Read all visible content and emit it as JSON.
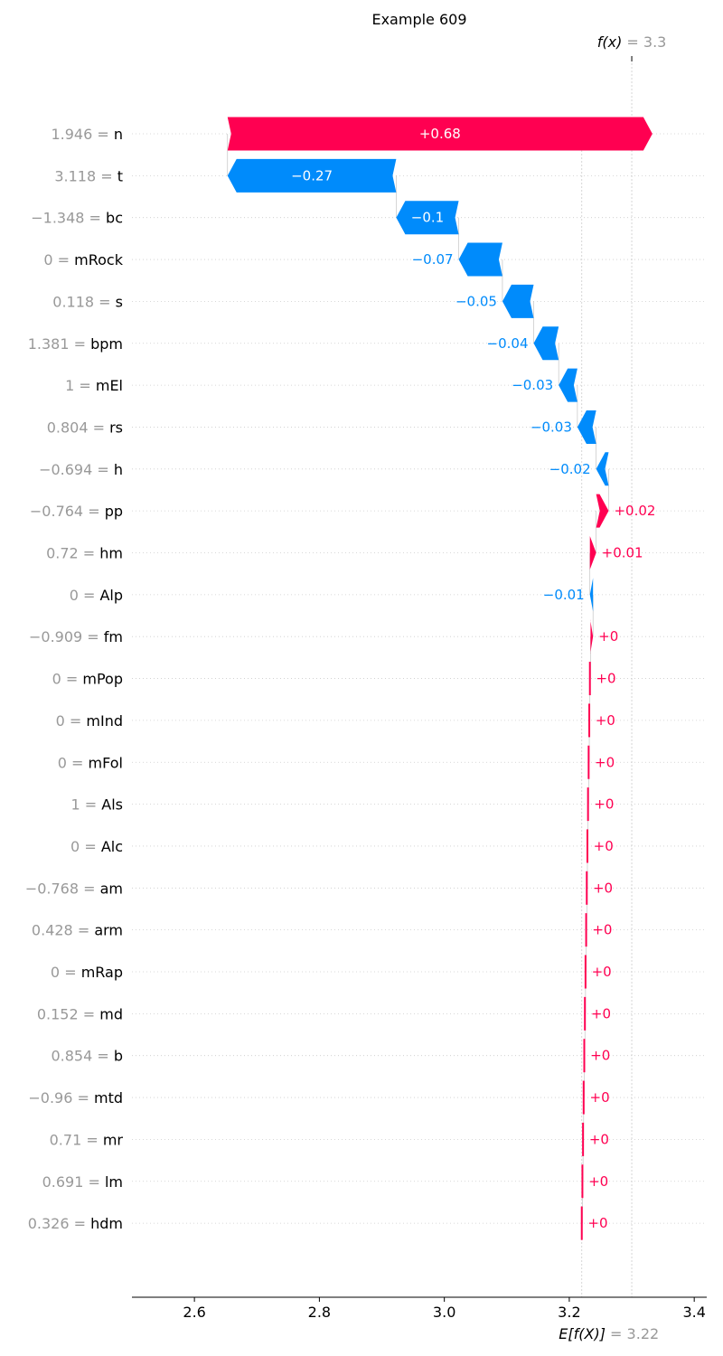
{
  "chart_data": {
    "type": "waterfall",
    "title": "Example 609",
    "base_value": 3.22,
    "base_label": "3.22",
    "fx_value": 3.3,
    "fx_label": "3.3",
    "fx_prefix": "f(x)",
    "base_prefix": "E[f(X)]",
    "xlim": [
      2.5,
      3.42
    ],
    "xticks": [
      2.6,
      2.8,
      3.0,
      3.2,
      3.4
    ],
    "xtick_labels": [
      "2.6",
      "2.8",
      "3.0",
      "3.2",
      "3.4"
    ],
    "features": [
      {
        "value": "1.946",
        "name": "n",
        "contribution": 0.68,
        "label": "+0.68"
      },
      {
        "value": "3.118",
        "name": "t",
        "contribution": -0.27,
        "label": "−0.27"
      },
      {
        "value": "−1.348",
        "name": "bc",
        "contribution": -0.1,
        "label": "−0.1"
      },
      {
        "value": "0",
        "name": "mRock",
        "contribution": -0.07,
        "label": "−0.07"
      },
      {
        "value": "0.118",
        "name": "s",
        "contribution": -0.05,
        "label": "−0.05"
      },
      {
        "value": "1.381",
        "name": "bpm",
        "contribution": -0.04,
        "label": "−0.04"
      },
      {
        "value": "1",
        "name": "mEl",
        "contribution": -0.03,
        "label": "−0.03"
      },
      {
        "value": "0.804",
        "name": "rs",
        "contribution": -0.03,
        "label": "−0.03"
      },
      {
        "value": "−0.694",
        "name": "h",
        "contribution": -0.02,
        "label": "−0.02"
      },
      {
        "value": "−0.764",
        "name": "pp",
        "contribution": 0.02,
        "label": "+0.02"
      },
      {
        "value": "0.72",
        "name": "hm",
        "contribution": 0.01,
        "label": "+0.01"
      },
      {
        "value": "0",
        "name": "Alp",
        "contribution": -0.005,
        "label": "−0.01"
      },
      {
        "value": "−0.909",
        "name": "fm",
        "contribution": 0.004,
        "label": "+0"
      },
      {
        "value": "0",
        "name": "mPop",
        "contribution": 0.001,
        "label": "+0"
      },
      {
        "value": "0",
        "name": "mInd",
        "contribution": 0.001,
        "label": "+0"
      },
      {
        "value": "0",
        "name": "mFol",
        "contribution": 0.001,
        "label": "+0"
      },
      {
        "value": "1",
        "name": "Als",
        "contribution": 0.001,
        "label": "+0"
      },
      {
        "value": "0",
        "name": "Alc",
        "contribution": 0.001,
        "label": "+0"
      },
      {
        "value": "−0.768",
        "name": "am",
        "contribution": 0.001,
        "label": "+0"
      },
      {
        "value": "0.428",
        "name": "arm",
        "contribution": 0.001,
        "label": "+0"
      },
      {
        "value": "0",
        "name": "mRap",
        "contribution": 0.001,
        "label": "+0"
      },
      {
        "value": "0.152",
        "name": "md",
        "contribution": 0.001,
        "label": "+0"
      },
      {
        "value": "0.854",
        "name": "b",
        "contribution": 0.001,
        "label": "+0"
      },
      {
        "value": "−0.96",
        "name": "mtd",
        "contribution": 0.001,
        "label": "+0"
      },
      {
        "value": "0.71",
        "name": "mr",
        "contribution": 0.001,
        "label": "+0"
      },
      {
        "value": "0.691",
        "name": "lm",
        "contribution": 0.001,
        "label": "+0"
      },
      {
        "value": "0.326",
        "name": "hdm",
        "contribution": 0.001,
        "label": "+0"
      }
    ],
    "colors": {
      "positive": "#ff0051",
      "negative": "#008bfb",
      "value_text": "#999999",
      "grid": "#cccccc"
    }
  }
}
